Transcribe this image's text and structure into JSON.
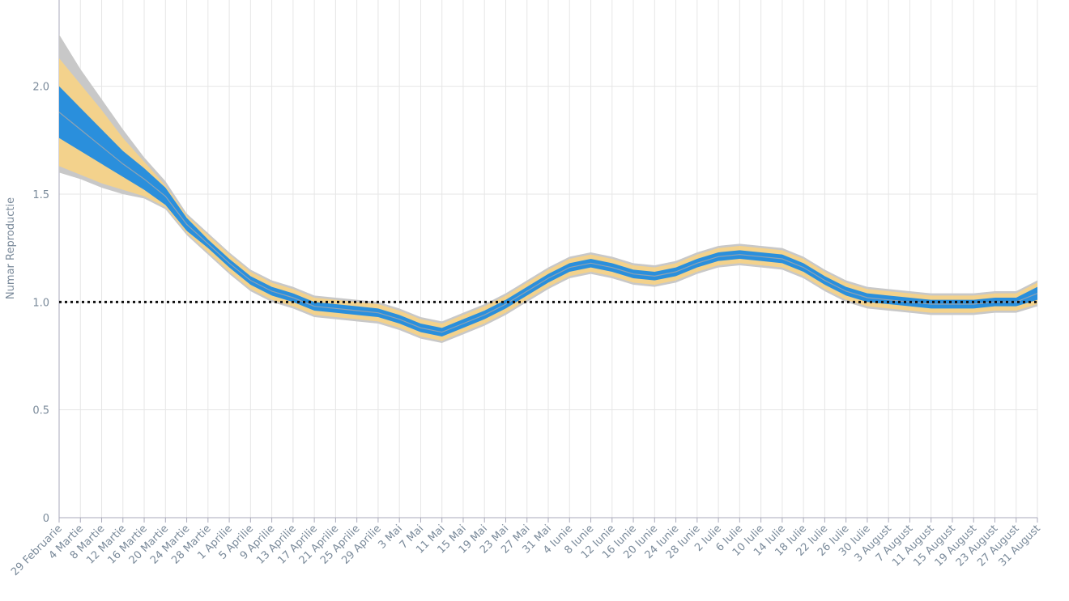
{
  "chart_data": {
    "type": "line",
    "ylabel": "Numar Reproductie",
    "categories": [
      "29 Februarie",
      "4 Martie",
      "8 Martie",
      "12 Martie",
      "16 Martie",
      "20 Martie",
      "24 Martie",
      "28 Martie",
      "1 Aprilie",
      "5 Aprilie",
      "9 Aprilie",
      "13 Aprilie",
      "17 Aprilie",
      "21 Aprilie",
      "25 Aprilie",
      "29 Aprilie",
      "3 Mai",
      "7 Mai",
      "11 Mai",
      "15 Mai",
      "19 Mai",
      "23 Mai",
      "27 Mai",
      "31 Mai",
      "4 Iunie",
      "8 Iunie",
      "12 Iunie",
      "16 Iunie",
      "20 Iunie",
      "24 Iunie",
      "28 Iunie",
      "2 Iulie",
      "6 Iulie",
      "10 Iulie",
      "14 Iulie",
      "18 Iulie",
      "22 Iulie",
      "26 Iulie",
      "30 Iulie",
      "3 August",
      "7 August",
      "11 August",
      "15 August",
      "19 August",
      "23 August",
      "27 August",
      "31 August"
    ],
    "series": [
      {
        "color": "#8fa3b3",
        "values": [
          1.88,
          1.8,
          1.72,
          1.64,
          1.57,
          1.49,
          1.36,
          1.27,
          1.18,
          1.1,
          1.05,
          1.02,
          0.98,
          0.97,
          0.96,
          0.95,
          0.92,
          0.88,
          0.86,
          0.9,
          0.94,
          0.99,
          1.05,
          1.11,
          1.16,
          1.18,
          1.16,
          1.13,
          1.12,
          1.14,
          1.18,
          1.21,
          1.22,
          1.21,
          1.2,
          1.16,
          1.1,
          1.05,
          1.02,
          1.01,
          1.0,
          0.99,
          0.99,
          0.99,
          1.0,
          1.0,
          1.04
        ]
      }
    ],
    "bands": [
      {
        "color": "#c8c8c8",
        "lower": [
          1.6,
          1.57,
          1.53,
          1.5,
          1.48,
          1.43,
          1.31,
          1.22,
          1.13,
          1.05,
          1.0,
          0.97,
          0.93,
          0.92,
          0.91,
          0.9,
          0.87,
          0.83,
          0.81,
          0.85,
          0.89,
          0.94,
          1.0,
          1.06,
          1.11,
          1.13,
          1.11,
          1.08,
          1.07,
          1.09,
          1.13,
          1.16,
          1.17,
          1.16,
          1.15,
          1.11,
          1.05,
          1.0,
          0.97,
          0.96,
          0.95,
          0.94,
          0.94,
          0.94,
          0.95,
          0.95,
          0.98
        ],
        "upper": [
          2.24,
          2.08,
          1.94,
          1.8,
          1.67,
          1.56,
          1.41,
          1.32,
          1.23,
          1.15,
          1.1,
          1.07,
          1.03,
          1.02,
          1.01,
          1.0,
          0.97,
          0.93,
          0.91,
          0.95,
          0.99,
          1.04,
          1.1,
          1.16,
          1.21,
          1.23,
          1.21,
          1.18,
          1.17,
          1.19,
          1.23,
          1.26,
          1.27,
          1.26,
          1.25,
          1.21,
          1.15,
          1.1,
          1.07,
          1.06,
          1.05,
          1.04,
          1.04,
          1.04,
          1.05,
          1.05,
          1.1
        ]
      },
      {
        "color": "#f3d28c",
        "lower": [
          1.63,
          1.59,
          1.55,
          1.52,
          1.49,
          1.44,
          1.32,
          1.23,
          1.14,
          1.06,
          1.01,
          0.98,
          0.94,
          0.93,
          0.92,
          0.91,
          0.88,
          0.84,
          0.82,
          0.86,
          0.9,
          0.95,
          1.01,
          1.07,
          1.12,
          1.14,
          1.12,
          1.09,
          1.08,
          1.1,
          1.14,
          1.17,
          1.18,
          1.17,
          1.16,
          1.12,
          1.06,
          1.01,
          0.98,
          0.97,
          0.96,
          0.95,
          0.95,
          0.95,
          0.96,
          0.96,
          0.99
        ],
        "upper": [
          2.13,
          2.01,
          1.89,
          1.76,
          1.65,
          1.54,
          1.4,
          1.31,
          1.22,
          1.14,
          1.09,
          1.06,
          1.02,
          1.01,
          1.0,
          0.99,
          0.96,
          0.92,
          0.9,
          0.94,
          0.98,
          1.03,
          1.09,
          1.15,
          1.2,
          1.22,
          1.2,
          1.17,
          1.16,
          1.18,
          1.22,
          1.25,
          1.26,
          1.25,
          1.24,
          1.2,
          1.14,
          1.09,
          1.06,
          1.05,
          1.04,
          1.03,
          1.03,
          1.03,
          1.04,
          1.04,
          1.09
        ]
      },
      {
        "color": "#2a8fdc",
        "lower": [
          1.76,
          1.7,
          1.64,
          1.58,
          1.52,
          1.45,
          1.33,
          1.25,
          1.16,
          1.08,
          1.03,
          1.0,
          0.96,
          0.95,
          0.94,
          0.93,
          0.9,
          0.86,
          0.84,
          0.88,
          0.92,
          0.97,
          1.03,
          1.09,
          1.14,
          1.16,
          1.14,
          1.11,
          1.1,
          1.12,
          1.16,
          1.19,
          1.2,
          1.19,
          1.18,
          1.14,
          1.08,
          1.03,
          1.0,
          0.99,
          0.98,
          0.97,
          0.97,
          0.97,
          0.98,
          0.98,
          1.01
        ],
        "upper": [
          2.0,
          1.9,
          1.8,
          1.7,
          1.62,
          1.53,
          1.39,
          1.29,
          1.2,
          1.12,
          1.07,
          1.04,
          1.0,
          0.99,
          0.98,
          0.97,
          0.94,
          0.9,
          0.88,
          0.92,
          0.96,
          1.01,
          1.07,
          1.13,
          1.18,
          1.2,
          1.18,
          1.15,
          1.14,
          1.16,
          1.2,
          1.23,
          1.24,
          1.23,
          1.22,
          1.18,
          1.12,
          1.07,
          1.04,
          1.03,
          1.02,
          1.01,
          1.01,
          1.01,
          1.02,
          1.02,
          1.07
        ]
      }
    ],
    "reference_line": 1,
    "ylim": [
      0,
      2.4
    ],
    "yticks": [
      0,
      0.5,
      {
        "value": 1,
        "label": "1.0"
      },
      1.5,
      {
        "value": 2,
        "label": "2.0"
      }
    ],
    "grid": true
  }
}
